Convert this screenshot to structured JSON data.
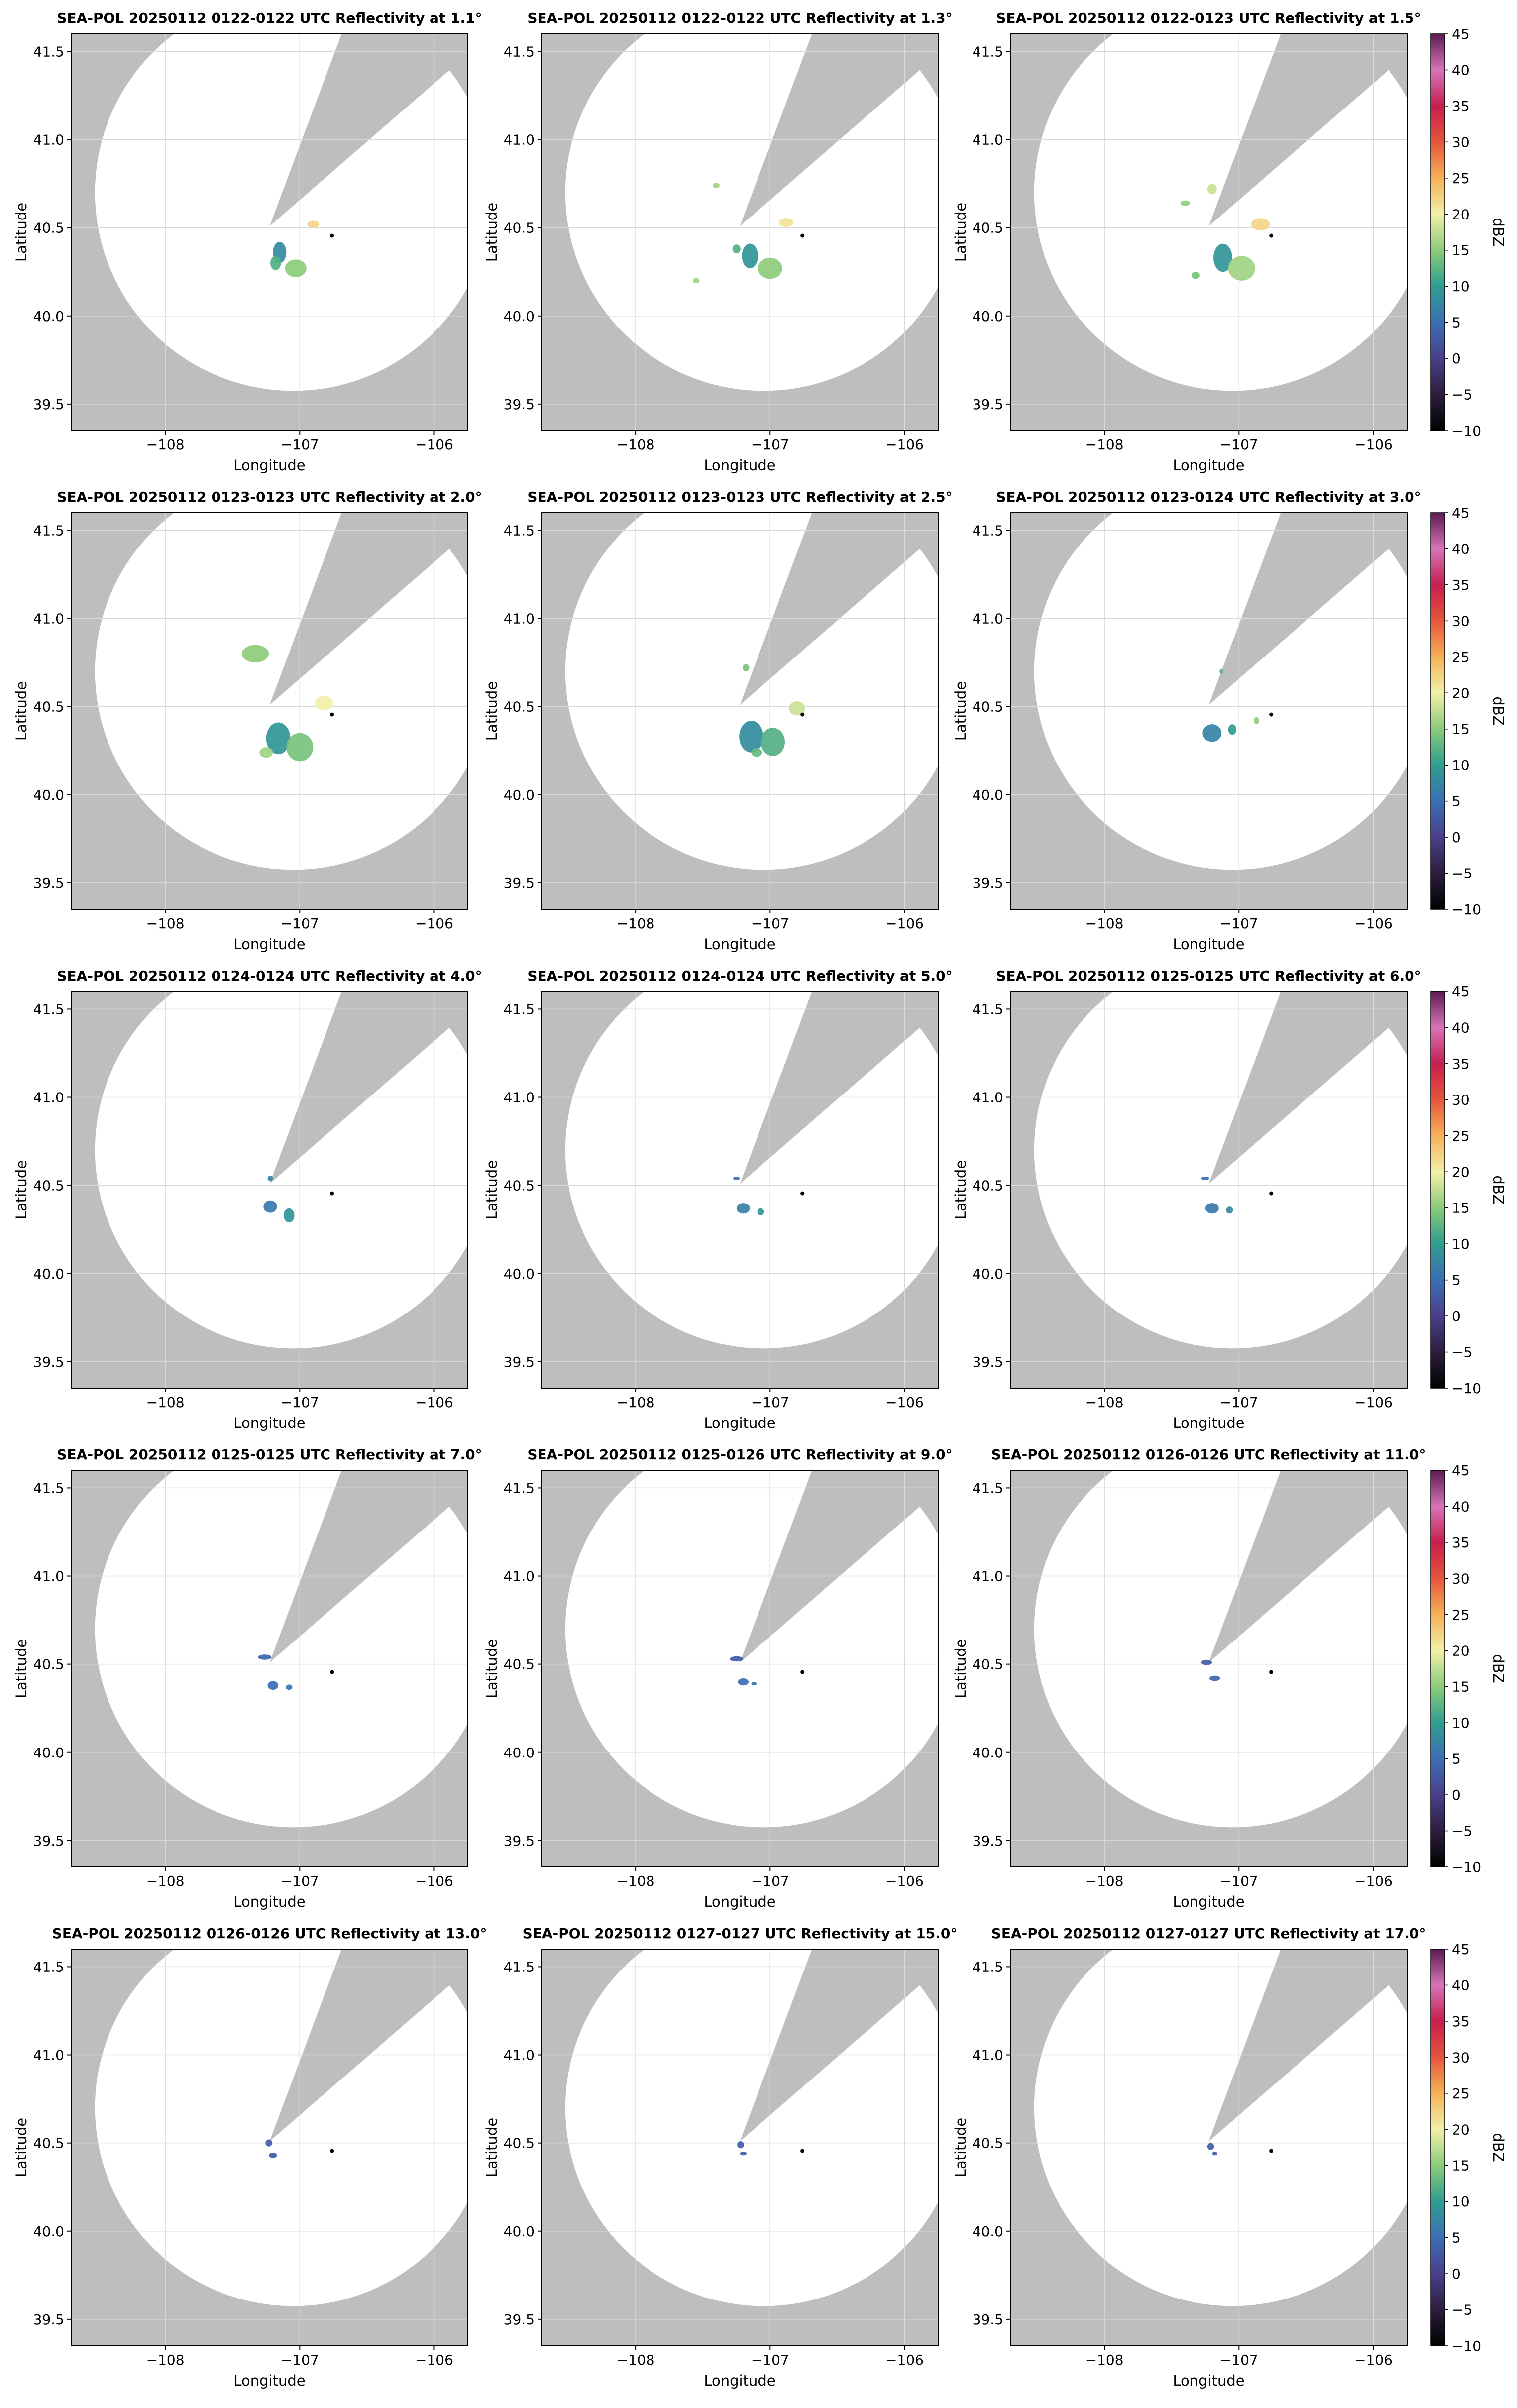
{
  "figure": {
    "background": "#ffffff",
    "mask_color": "#bebebe",
    "grid_color": "#d9d9d9",
    "station_marker": {
      "lon": -106.76,
      "lat": 40.455
    }
  },
  "chart_data": [
    {
      "type": "heatmap",
      "title": "SEA-POL 20250112 0122-0122 UTC Reflectivity at 1.1°",
      "xlabel": "Longitude",
      "ylabel": "Latitude",
      "xlim": [
        -108.7,
        -105.75
      ],
      "ylim": [
        39.35,
        41.6
      ],
      "xticks": [
        -108,
        -107,
        -106
      ],
      "xtick_labels": [
        "−108",
        "−107",
        "−106"
      ],
      "yticks": [
        39.5,
        40.0,
        40.5,
        41.0,
        41.5
      ],
      "ytick_labels": [
        "39.5",
        "40.0",
        "40.5",
        "41.0",
        "41.5"
      ],
      "grid": true,
      "echoes": [
        {
          "lon": -106.9,
          "lat": 40.52,
          "dbz": 22,
          "w": 0.09,
          "h": 0.04
        },
        {
          "lon": -107.15,
          "lat": 40.36,
          "dbz": 8,
          "w": 0.1,
          "h": 0.12
        },
        {
          "lon": -107.03,
          "lat": 40.27,
          "dbz": 15,
          "w": 0.16,
          "h": 0.1
        },
        {
          "lon": -107.18,
          "lat": 40.3,
          "dbz": 12,
          "w": 0.08,
          "h": 0.08
        }
      ]
    },
    {
      "type": "heatmap",
      "title": "SEA-POL 20250112 0122-0122 UTC Reflectivity at 1.3°",
      "xlabel": "Longitude",
      "ylabel": "Latitude",
      "xlim": [
        -108.7,
        -105.75
      ],
      "ylim": [
        39.35,
        41.6
      ],
      "xticks": [
        -108,
        -107,
        -106
      ],
      "xtick_labels": [
        "−108",
        "−107",
        "−106"
      ],
      "yticks": [
        39.5,
        40.0,
        40.5,
        41.0,
        41.5
      ],
      "ytick_labels": [
        "39.5",
        "40.0",
        "40.5",
        "41.0",
        "41.5"
      ],
      "grid": true,
      "echoes": [
        {
          "lon": -106.88,
          "lat": 40.53,
          "dbz": 21,
          "w": 0.11,
          "h": 0.05
        },
        {
          "lon": -107.15,
          "lat": 40.34,
          "dbz": 9,
          "w": 0.12,
          "h": 0.14
        },
        {
          "lon": -107.0,
          "lat": 40.27,
          "dbz": 15,
          "w": 0.18,
          "h": 0.12
        },
        {
          "lon": -107.25,
          "lat": 40.38,
          "dbz": 12,
          "w": 0.06,
          "h": 0.05
        },
        {
          "lon": -107.4,
          "lat": 40.74,
          "dbz": 16,
          "w": 0.05,
          "h": 0.03
        },
        {
          "lon": -107.55,
          "lat": 40.2,
          "dbz": 16,
          "w": 0.05,
          "h": 0.03
        }
      ]
    },
    {
      "type": "heatmap",
      "title": "SEA-POL 20250112 0122-0123 UTC Reflectivity at 1.5°",
      "xlabel": "Longitude",
      "ylabel": "Latitude",
      "xlim": [
        -108.7,
        -105.75
      ],
      "ylim": [
        39.35,
        41.6
      ],
      "xticks": [
        -108,
        -107,
        -106
      ],
      "xtick_labels": [
        "−108",
        "−107",
        "−106"
      ],
      "yticks": [
        39.5,
        40.0,
        40.5,
        41.0,
        41.5
      ],
      "ytick_labels": [
        "39.5",
        "40.0",
        "40.5",
        "41.0",
        "41.5"
      ],
      "grid": true,
      "echoes": [
        {
          "lon": -106.84,
          "lat": 40.52,
          "dbz": 22,
          "w": 0.14,
          "h": 0.07
        },
        {
          "lon": -107.12,
          "lat": 40.33,
          "dbz": 9,
          "w": 0.14,
          "h": 0.16
        },
        {
          "lon": -106.98,
          "lat": 40.27,
          "dbz": 16,
          "w": 0.2,
          "h": 0.14
        },
        {
          "lon": -107.2,
          "lat": 40.72,
          "dbz": 18,
          "w": 0.07,
          "h": 0.06
        },
        {
          "lon": -107.4,
          "lat": 40.64,
          "dbz": 15,
          "w": 0.07,
          "h": 0.03
        },
        {
          "lon": -107.32,
          "lat": 40.23,
          "dbz": 14,
          "w": 0.06,
          "h": 0.04
        }
      ]
    },
    {
      "type": "heatmap",
      "title": "SEA-POL 20250112 0123-0123 UTC Reflectivity at 2.0°",
      "xlabel": "Longitude",
      "ylabel": "Latitude",
      "xlim": [
        -108.7,
        -105.75
      ],
      "ylim": [
        39.35,
        41.6
      ],
      "xticks": [
        -108,
        -107,
        -106
      ],
      "xtick_labels": [
        "−108",
        "−107",
        "−106"
      ],
      "yticks": [
        39.5,
        40.0,
        40.5,
        41.0,
        41.5
      ],
      "ytick_labels": [
        "39.5",
        "40.0",
        "40.5",
        "41.0",
        "41.5"
      ],
      "grid": true,
      "echoes": [
        {
          "lon": -106.82,
          "lat": 40.52,
          "dbz": 20,
          "w": 0.14,
          "h": 0.08
        },
        {
          "lon": -107.16,
          "lat": 40.32,
          "dbz": 9,
          "w": 0.18,
          "h": 0.18
        },
        {
          "lon": -107.0,
          "lat": 40.27,
          "dbz": 14,
          "w": 0.2,
          "h": 0.16
        },
        {
          "lon": -107.33,
          "lat": 40.8,
          "dbz": 15,
          "w": 0.2,
          "h": 0.1
        },
        {
          "lon": -107.25,
          "lat": 40.24,
          "dbz": 16,
          "w": 0.1,
          "h": 0.06
        }
      ]
    },
    {
      "type": "heatmap",
      "title": "SEA-POL 20250112 0123-0123 UTC Reflectivity at 2.5°",
      "xlabel": "Longitude",
      "ylabel": "Latitude",
      "xlim": [
        -108.7,
        -105.75
      ],
      "ylim": [
        39.35,
        41.6
      ],
      "xticks": [
        -108,
        -107,
        -106
      ],
      "xtick_labels": [
        "−108",
        "−107",
        "−106"
      ],
      "yticks": [
        39.5,
        40.0,
        40.5,
        41.0,
        41.5
      ],
      "ytick_labels": [
        "39.5",
        "40.0",
        "40.5",
        "41.0",
        "41.5"
      ],
      "grid": true,
      "echoes": [
        {
          "lon": -106.8,
          "lat": 40.49,
          "dbz": 18,
          "w": 0.12,
          "h": 0.08
        },
        {
          "lon": -107.14,
          "lat": 40.33,
          "dbz": 8,
          "w": 0.18,
          "h": 0.18
        },
        {
          "lon": -106.98,
          "lat": 40.3,
          "dbz": 12,
          "w": 0.18,
          "h": 0.16
        },
        {
          "lon": -107.18,
          "lat": 40.72,
          "dbz": 14,
          "w": 0.05,
          "h": 0.04
        },
        {
          "lon": -107.1,
          "lat": 40.24,
          "dbz": 13,
          "w": 0.08,
          "h": 0.05
        }
      ]
    },
    {
      "type": "heatmap",
      "title": "SEA-POL 20250112 0123-0124 UTC Reflectivity at 3.0°",
      "xlabel": "Longitude",
      "ylabel": "Latitude",
      "xlim": [
        -108.7,
        -105.75
      ],
      "ylim": [
        39.35,
        41.6
      ],
      "xticks": [
        -108,
        -107,
        -106
      ],
      "xtick_labels": [
        "−108",
        "−107",
        "−106"
      ],
      "yticks": [
        39.5,
        40.0,
        40.5,
        41.0,
        41.5
      ],
      "ytick_labels": [
        "39.5",
        "40.0",
        "40.5",
        "41.0",
        "41.5"
      ],
      "grid": true,
      "echoes": [
        {
          "lon": -107.2,
          "lat": 40.35,
          "dbz": 7,
          "w": 0.14,
          "h": 0.1
        },
        {
          "lon": -107.05,
          "lat": 40.37,
          "dbz": 10,
          "w": 0.06,
          "h": 0.06
        },
        {
          "lon": -106.87,
          "lat": 40.42,
          "dbz": 15,
          "w": 0.04,
          "h": 0.04
        },
        {
          "lon": -107.13,
          "lat": 40.7,
          "dbz": 13,
          "w": 0.03,
          "h": 0.03
        }
      ]
    },
    {
      "type": "heatmap",
      "title": "SEA-POL 20250112 0124-0124 UTC Reflectivity at 4.0°",
      "xlabel": "Longitude",
      "ylabel": "Latitude",
      "xlim": [
        -108.7,
        -105.75
      ],
      "ylim": [
        39.35,
        41.6
      ],
      "xticks": [
        -108,
        -107,
        -106
      ],
      "xtick_labels": [
        "−108",
        "−107",
        "−106"
      ],
      "yticks": [
        39.5,
        40.0,
        40.5,
        41.0,
        41.5
      ],
      "ytick_labels": [
        "39.5",
        "40.0",
        "40.5",
        "41.0",
        "41.5"
      ],
      "grid": true,
      "echoes": [
        {
          "lon": -107.22,
          "lat": 40.38,
          "dbz": 6,
          "w": 0.1,
          "h": 0.07
        },
        {
          "lon": -107.08,
          "lat": 40.33,
          "dbz": 9,
          "w": 0.08,
          "h": 0.08
        },
        {
          "lon": -107.22,
          "lat": 40.54,
          "dbz": 7,
          "w": 0.04,
          "h": 0.03
        }
      ]
    },
    {
      "type": "heatmap",
      "title": "SEA-POL 20250112 0124-0124 UTC Reflectivity at 5.0°",
      "xlabel": "Longitude",
      "ylabel": "Latitude",
      "xlim": [
        -108.7,
        -105.75
      ],
      "ylim": [
        39.35,
        41.6
      ],
      "xticks": [
        -108,
        -107,
        -106
      ],
      "xtick_labels": [
        "−108",
        "−107",
        "−106"
      ],
      "yticks": [
        39.5,
        40.0,
        40.5,
        41.0,
        41.5
      ],
      "ytick_labels": [
        "39.5",
        "40.0",
        "40.5",
        "41.0",
        "41.5"
      ],
      "grid": true,
      "echoes": [
        {
          "lon": -107.2,
          "lat": 40.37,
          "dbz": 7,
          "w": 0.1,
          "h": 0.06
        },
        {
          "lon": -107.07,
          "lat": 40.35,
          "dbz": 9,
          "w": 0.05,
          "h": 0.04
        },
        {
          "lon": -107.25,
          "lat": 40.54,
          "dbz": 5,
          "w": 0.05,
          "h": 0.02
        }
      ]
    },
    {
      "type": "heatmap",
      "title": "SEA-POL 20250112 0125-0125 UTC Reflectivity at 6.0°",
      "xlabel": "Longitude",
      "ylabel": "Latitude",
      "xlim": [
        -108.7,
        -105.75
      ],
      "ylim": [
        39.35,
        41.6
      ],
      "xticks": [
        -108,
        -107,
        -106
      ],
      "xtick_labels": [
        "−108",
        "−107",
        "−106"
      ],
      "yticks": [
        39.5,
        40.0,
        40.5,
        41.0,
        41.5
      ],
      "ytick_labels": [
        "39.5",
        "40.0",
        "40.5",
        "41.0",
        "41.5"
      ],
      "grid": true,
      "echoes": [
        {
          "lon": -107.2,
          "lat": 40.37,
          "dbz": 6,
          "w": 0.1,
          "h": 0.06
        },
        {
          "lon": -107.07,
          "lat": 40.36,
          "dbz": 8,
          "w": 0.05,
          "h": 0.04
        },
        {
          "lon": -107.25,
          "lat": 40.54,
          "dbz": 5,
          "w": 0.06,
          "h": 0.02
        }
      ]
    },
    {
      "type": "heatmap",
      "title": "SEA-POL 20250112 0125-0125 UTC Reflectivity at 7.0°",
      "xlabel": "Longitude",
      "ylabel": "Latitude",
      "xlim": [
        -108.7,
        -105.75
      ],
      "ylim": [
        39.35,
        41.6
      ],
      "xticks": [
        -108,
        -107,
        -106
      ],
      "xtick_labels": [
        "−108",
        "−107",
        "−106"
      ],
      "yticks": [
        39.5,
        40.0,
        40.5,
        41.0,
        41.5
      ],
      "ytick_labels": [
        "39.5",
        "40.0",
        "40.5",
        "41.0",
        "41.5"
      ],
      "grid": true,
      "echoes": [
        {
          "lon": -107.26,
          "lat": 40.54,
          "dbz": 4,
          "w": 0.1,
          "h": 0.03
        },
        {
          "lon": -107.2,
          "lat": 40.38,
          "dbz": 5,
          "w": 0.08,
          "h": 0.05
        },
        {
          "lon": -107.08,
          "lat": 40.37,
          "dbz": 6,
          "w": 0.05,
          "h": 0.03
        }
      ]
    },
    {
      "type": "heatmap",
      "title": "SEA-POL 20250112 0125-0126 UTC Reflectivity at 9.0°",
      "xlabel": "Longitude",
      "ylabel": "Latitude",
      "xlim": [
        -108.7,
        -105.75
      ],
      "ylim": [
        39.35,
        41.6
      ],
      "xticks": [
        -108,
        -107,
        -106
      ],
      "xtick_labels": [
        "−108",
        "−107",
        "−106"
      ],
      "yticks": [
        39.5,
        40.0,
        40.5,
        41.0,
        41.5
      ],
      "ytick_labels": [
        "39.5",
        "40.0",
        "40.5",
        "41.0",
        "41.5"
      ],
      "grid": true,
      "echoes": [
        {
          "lon": -107.25,
          "lat": 40.53,
          "dbz": 3,
          "w": 0.1,
          "h": 0.03
        },
        {
          "lon": -107.2,
          "lat": 40.4,
          "dbz": 5,
          "w": 0.08,
          "h": 0.04
        },
        {
          "lon": -107.12,
          "lat": 40.39,
          "dbz": 6,
          "w": 0.04,
          "h": 0.02
        }
      ]
    },
    {
      "type": "heatmap",
      "title": "SEA-POL 20250112 0126-0126 UTC Reflectivity at 11.0°",
      "xlabel": "Longitude",
      "ylabel": "Latitude",
      "xlim": [
        -108.7,
        -105.75
      ],
      "ylim": [
        39.35,
        41.6
      ],
      "xticks": [
        -108,
        -107,
        -106
      ],
      "xtick_labels": [
        "−108",
        "−107",
        "−106"
      ],
      "yticks": [
        39.5,
        40.0,
        40.5,
        41.0,
        41.5
      ],
      "ytick_labels": [
        "39.5",
        "40.0",
        "40.5",
        "41.0",
        "41.5"
      ],
      "grid": true,
      "echoes": [
        {
          "lon": -107.24,
          "lat": 40.51,
          "dbz": 3,
          "w": 0.08,
          "h": 0.03
        },
        {
          "lon": -107.18,
          "lat": 40.42,
          "dbz": 4,
          "w": 0.08,
          "h": 0.03
        }
      ]
    },
    {
      "type": "heatmap",
      "title": "SEA-POL 20250112 0126-0126 UTC Reflectivity at 13.0°",
      "xlabel": "Longitude",
      "ylabel": "Latitude",
      "xlim": [
        -108.7,
        -105.75
      ],
      "ylim": [
        39.35,
        41.6
      ],
      "xticks": [
        -108,
        -107,
        -106
      ],
      "xtick_labels": [
        "−108",
        "−107",
        "−106"
      ],
      "yticks": [
        39.5,
        40.0,
        40.5,
        41.0,
        41.5
      ],
      "ytick_labels": [
        "39.5",
        "40.0",
        "40.5",
        "41.0",
        "41.5"
      ],
      "grid": true,
      "echoes": [
        {
          "lon": -107.23,
          "lat": 40.5,
          "dbz": 3,
          "w": 0.05,
          "h": 0.04
        },
        {
          "lon": -107.2,
          "lat": 40.43,
          "dbz": 3,
          "w": 0.06,
          "h": 0.03
        }
      ]
    },
    {
      "type": "heatmap",
      "title": "SEA-POL 20250112 0127-0127 UTC Reflectivity at 15.0°",
      "xlabel": "Longitude",
      "ylabel": "Latitude",
      "xlim": [
        -108.7,
        -105.75
      ],
      "ylim": [
        39.35,
        41.6
      ],
      "xticks": [
        -108,
        -107,
        -106
      ],
      "xtick_labels": [
        "−108",
        "−107",
        "−106"
      ],
      "yticks": [
        39.5,
        40.0,
        40.5,
        41.0,
        41.5
      ],
      "ytick_labels": [
        "39.5",
        "40.0",
        "40.5",
        "41.0",
        "41.5"
      ],
      "grid": true,
      "echoes": [
        {
          "lon": -107.22,
          "lat": 40.49,
          "dbz": 3,
          "w": 0.05,
          "h": 0.04
        },
        {
          "lon": -107.2,
          "lat": 40.44,
          "dbz": 3,
          "w": 0.05,
          "h": 0.02
        }
      ]
    },
    {
      "type": "heatmap",
      "title": "SEA-POL 20250112 0127-0127 UTC Reflectivity at 17.0°",
      "xlabel": "Longitude",
      "ylabel": "Latitude",
      "xlim": [
        -108.7,
        -105.75
      ],
      "ylim": [
        39.35,
        41.6
      ],
      "xticks": [
        -108,
        -107,
        -106
      ],
      "xtick_labels": [
        "−108",
        "−107",
        "−106"
      ],
      "yticks": [
        39.5,
        40.0,
        40.5,
        41.0,
        41.5
      ],
      "ytick_labels": [
        "39.5",
        "40.0",
        "40.5",
        "41.0",
        "41.5"
      ],
      "grid": true,
      "echoes": [
        {
          "lon": -107.21,
          "lat": 40.48,
          "dbz": 3,
          "w": 0.05,
          "h": 0.04
        },
        {
          "lon": -107.18,
          "lat": 40.44,
          "dbz": 3,
          "w": 0.04,
          "h": 0.02
        }
      ]
    }
  ],
  "colorbar": {
    "label": "dBZ",
    "range": [
      -10,
      45
    ],
    "ticks": [
      -10,
      -5,
      0,
      5,
      10,
      15,
      20,
      25,
      30,
      35,
      40,
      45
    ],
    "tick_labels": [
      "−10",
      "−5",
      "0",
      "5",
      "10",
      "15",
      "20",
      "25",
      "30",
      "35",
      "40",
      "45"
    ],
    "stops": [
      {
        "v": -10,
        "c": "#000000"
      },
      {
        "v": -5,
        "c": "#2d1e3e"
      },
      {
        "v": 0,
        "c": "#4a3f8c"
      },
      {
        "v": 5,
        "c": "#3b6fb6"
      },
      {
        "v": 10,
        "c": "#2e9e8f"
      },
      {
        "v": 15,
        "c": "#8ccc7a"
      },
      {
        "v": 20,
        "c": "#f1f0a8"
      },
      {
        "v": 25,
        "c": "#f6b257"
      },
      {
        "v": 30,
        "c": "#e6553b"
      },
      {
        "v": 35,
        "c": "#c41f4f"
      },
      {
        "v": 40,
        "c": "#d874b9"
      },
      {
        "v": 45,
        "c": "#5c1a52"
      }
    ]
  }
}
